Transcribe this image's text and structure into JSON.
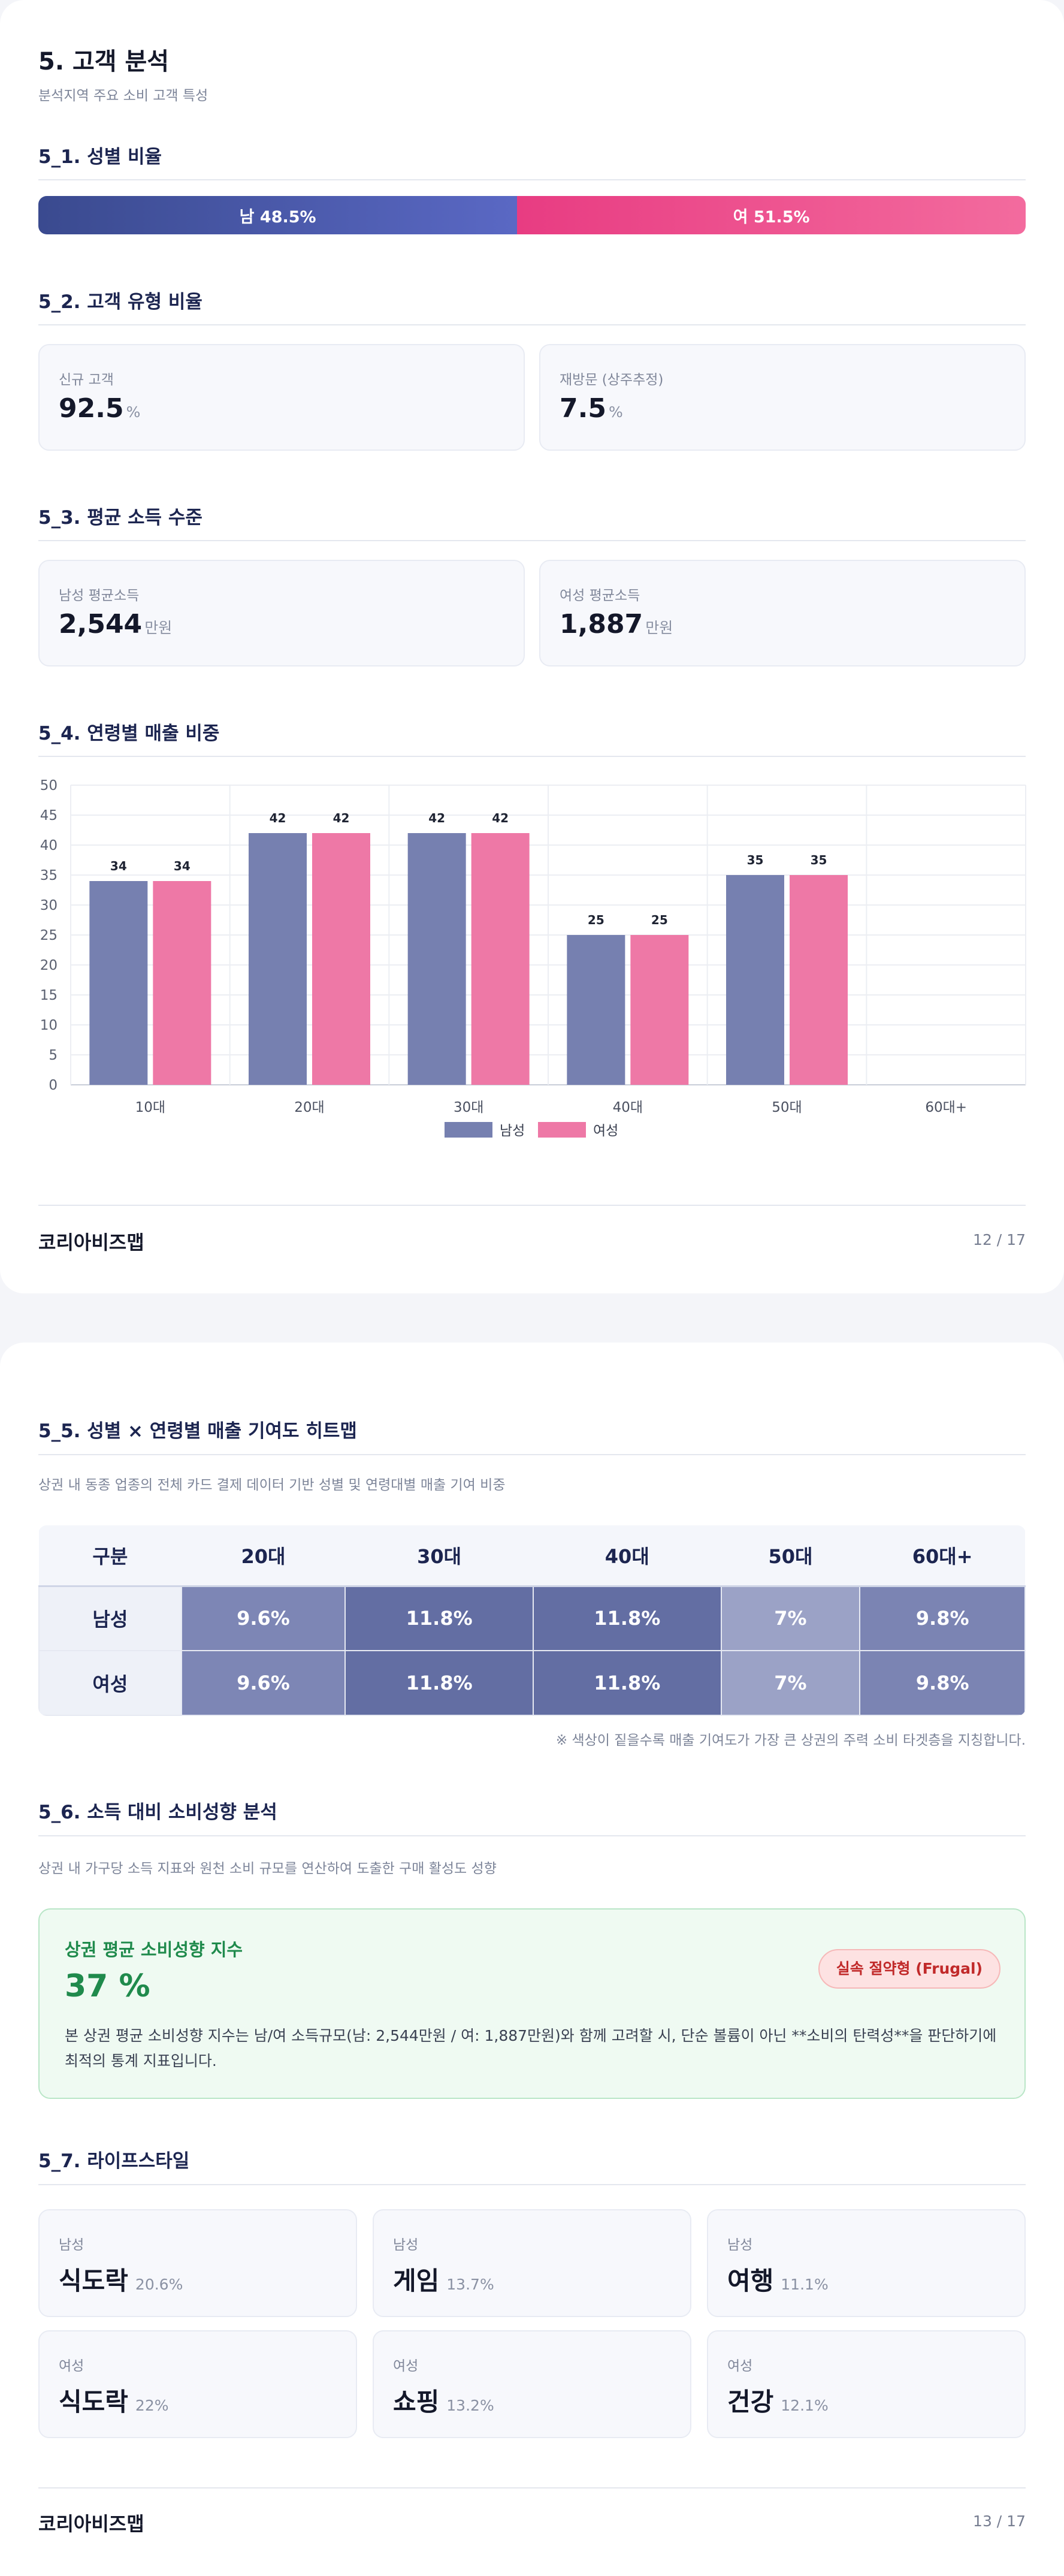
{
  "page1": {
    "title": "5. 고객 분석",
    "subtitle": "분석지역 주요 소비 고객 특성",
    "gender": {
      "heading": "5_1. 성별 비율",
      "male_label": "남 48.5%",
      "female_label": "여 51.5%",
      "male_share": 48.5,
      "female_share": 51.5,
      "male_color": "#4a5aad",
      "female_color": "#ec4a8a"
    },
    "customer_type": {
      "heading": "5_2. 고객 유형 비율",
      "cards": [
        {
          "label": "신규 고객",
          "value": "92.5",
          "unit": "%"
        },
        {
          "label": "재방문 (상주추정)",
          "value": "7.5",
          "unit": "%"
        }
      ]
    },
    "income": {
      "heading": "5_3. 평균 소득 수준",
      "cards": [
        {
          "label": "남성 평균소득",
          "value": "2,544",
          "unit": "만원"
        },
        {
          "label": "여성 평균소득",
          "value": "1,887",
          "unit": "만원"
        }
      ]
    },
    "age_sales": {
      "heading": "5_4. 연령별 매출 비중"
    },
    "footer": {
      "brand": "코리아비즈맵",
      "page": "12 / 17"
    }
  },
  "chart_data": {
    "type": "bar",
    "categories": [
      "10대",
      "20대",
      "30대",
      "40대",
      "50대",
      "60대+"
    ],
    "series": [
      {
        "name": "남성",
        "values": [
          34,
          42,
          42,
          25,
          35,
          null
        ],
        "color": "#7680b0"
      },
      {
        "name": "여성",
        "values": [
          34,
          42,
          42,
          25,
          35,
          null
        ],
        "color": "#ee78a6"
      }
    ],
    "yticks": [
      0,
      5,
      10,
      15,
      20,
      25,
      30,
      35,
      40,
      45,
      50
    ],
    "ylim": [
      0,
      50
    ],
    "grid": true,
    "legend_position": "bottom"
  },
  "page2": {
    "heatmap": {
      "heading": "5_5. 성별 × 연령별 매출 기여도 히트맵",
      "description": "상권 내 동종 업종의 전체 카드 결제 데이터 기반 성별 및 연령대별 매출 기여 비중",
      "columns": [
        "구분",
        "20대",
        "30대",
        "40대",
        "50대",
        "60대+"
      ],
      "rows": [
        {
          "label": "남성",
          "cells": [
            {
              "text": "9.6%",
              "color": "#7d86b5"
            },
            {
              "text": "11.8%",
              "color": "#636ea3"
            },
            {
              "text": "11.8%",
              "color": "#636ea3"
            },
            {
              "text": "7%",
              "color": "#9ba2c6"
            },
            {
              "text": "9.8%",
              "color": "#7b84b3"
            }
          ]
        },
        {
          "label": "여성",
          "cells": [
            {
              "text": "9.6%",
              "color": "#7d86b5"
            },
            {
              "text": "11.8%",
              "color": "#636ea3"
            },
            {
              "text": "11.8%",
              "color": "#636ea3"
            },
            {
              "text": "7%",
              "color": "#9ba2c6"
            },
            {
              "text": "9.8%",
              "color": "#7b84b3"
            }
          ]
        }
      ],
      "note": "※ 색상이 짙을수록 매출 기여도가 가장 큰 상권의 주력 소비 타겟층을 지칭합니다."
    },
    "spending": {
      "heading": "5_6. 소득 대비 소비성향 분석",
      "description": "상권 내 가구당 소득 지표와 원천 소비 규모를 연산하여 도출한 구매 활성도 성향",
      "box_title": "상권 평균 소비성향 지수",
      "box_value": "37 %",
      "badge": "실속 절약형 (Frugal)",
      "body": "본 상권 평균 소비성향 지수는 남/여 소득규모(남: 2,544만원 / 여: 1,887만원)와 함께 고려할 시, 단순 볼륨이 아닌 **소비의 탄력성**을 판단하기에 최적의 통계 지표입니다.",
      "accent": "#1f8a4c"
    },
    "lifestyle": {
      "heading": "5_7. 라이프스타일",
      "items": [
        {
          "category": "남성",
          "name": "식도락",
          "pct": "20.6%"
        },
        {
          "category": "남성",
          "name": "게임",
          "pct": "13.7%"
        },
        {
          "category": "남성",
          "name": "여행",
          "pct": "11.1%"
        },
        {
          "category": "여성",
          "name": "식도락",
          "pct": "22%"
        },
        {
          "category": "여성",
          "name": "쇼핑",
          "pct": "13.2%"
        },
        {
          "category": "여성",
          "name": "건강",
          "pct": "12.1%"
        }
      ]
    },
    "footer": {
      "brand": "코리아비즈맵",
      "page": "13 / 17"
    }
  }
}
